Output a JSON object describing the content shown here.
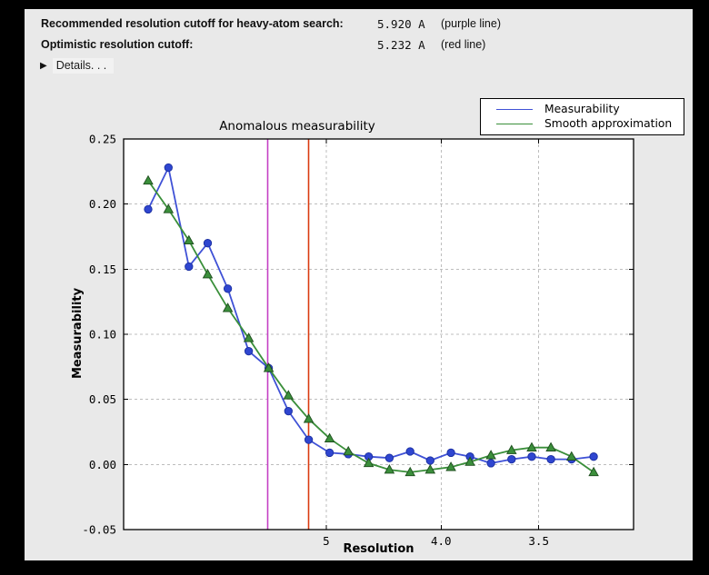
{
  "header": {
    "rows": [
      {
        "label": "Recommended resolution cutoff for heavy-atom search:",
        "value": "5.920 A",
        "note": "(purple line)"
      },
      {
        "label": "Optimistic resolution cutoff:",
        "value": "5.232 A",
        "note": "(red line)"
      }
    ],
    "details": {
      "icon": "▶",
      "label": "Details. . ."
    }
  },
  "chart_data": {
    "type": "line",
    "title": "Anomalous measurability",
    "xlabel": "Resolution",
    "ylabel": "Measurability",
    "grid": true,
    "grid_color": "#bdbdbd",
    "x_axis": {
      "unit": "Angstrom",
      "scale": "inverse_d_squared",
      "range_inv_d2": [
        0.0003,
        0.1002
      ],
      "ticks": [
        {
          "value": 5.0,
          "label": "5"
        },
        {
          "value": 4.0,
          "label": "4.0"
        },
        {
          "value": 3.5,
          "label": "3.5"
        }
      ]
    },
    "y_axis": {
      "range": [
        -0.05,
        0.25
      ],
      "ticks": [
        {
          "value": 0.25,
          "label": "0.25"
        },
        {
          "value": 0.2,
          "label": "0.20"
        },
        {
          "value": 0.15,
          "label": "0.15"
        },
        {
          "value": 0.1,
          "label": "0.10"
        },
        {
          "value": 0.05,
          "label": "0.05"
        },
        {
          "value": 0.0,
          "label": "0.00"
        },
        {
          "value": -0.05,
          "label": "-0.05"
        }
      ]
    },
    "resolution_A": [
      14.0,
      10.5,
      8.74,
      7.72,
      6.95,
      6.35,
      5.9,
      5.54,
      5.23,
      4.96,
      4.75,
      4.55,
      4.37,
      4.21,
      4.07,
      3.94,
      3.83,
      3.72,
      3.62,
      3.53,
      3.45,
      3.37,
      3.29
    ],
    "series": [
      {
        "name": "Measurability",
        "color": "#3f51d6",
        "marker": "circle",
        "marker_fill": "#2f46d0",
        "marker_edge": "#1b2fa0",
        "values": [
          0.196,
          0.228,
          0.152,
          0.17,
          0.135,
          0.087,
          0.074,
          0.041,
          0.019,
          0.009,
          0.008,
          0.006,
          0.005,
          0.01,
          0.003,
          0.009,
          0.006,
          0.001,
          0.004,
          0.006,
          0.004,
          0.004,
          0.006
        ]
      },
      {
        "name": "Smooth approximation",
        "color": "#3a8f3a",
        "marker": "triangle_up",
        "marker_fill": "#3b8f3b",
        "marker_edge": "#1d4d1d",
        "values": [
          0.218,
          0.196,
          0.172,
          0.146,
          0.12,
          0.097,
          0.074,
          0.053,
          0.035,
          0.02,
          0.01,
          0.001,
          -0.004,
          -0.006,
          -0.004,
          -0.002,
          0.002,
          0.007,
          0.011,
          0.013,
          0.013,
          0.006,
          -0.006
        ]
      }
    ],
    "vlines": [
      {
        "name": "recommended-cutoff",
        "label": "purple line",
        "resolution_A": 5.92,
        "color": "#c43fc4"
      },
      {
        "name": "optimistic-cutoff",
        "label": "red line",
        "resolution_A": 5.232,
        "color": "#d93a10"
      }
    ],
    "legend": {
      "position": "top-right"
    }
  }
}
